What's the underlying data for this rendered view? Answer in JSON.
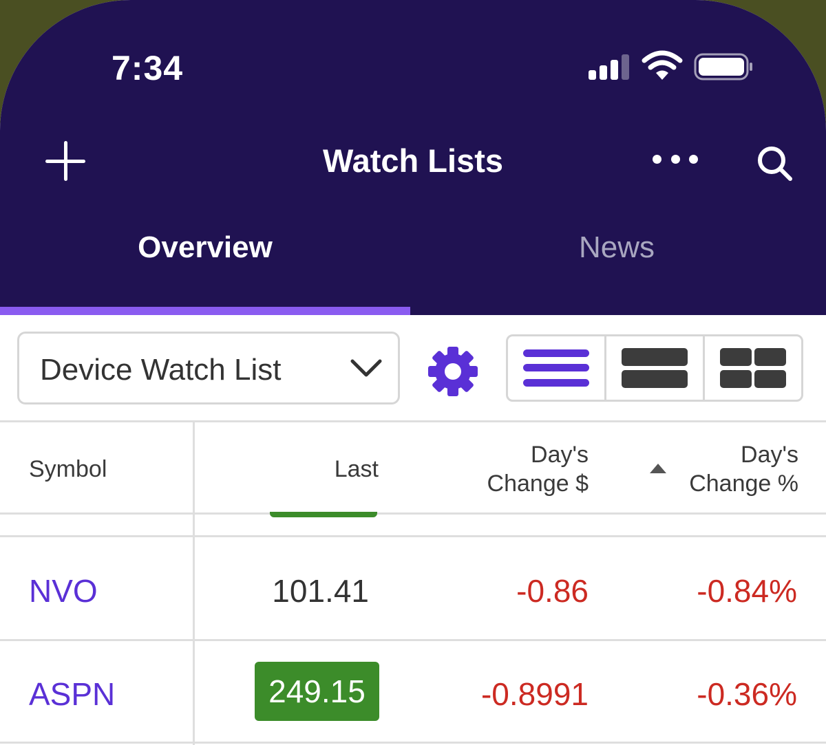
{
  "status_bar": {
    "time": "7:34"
  },
  "nav": {
    "title": "Watch Lists"
  },
  "tabs": [
    {
      "label": "Overview",
      "active": true
    },
    {
      "label": "News",
      "active": false
    }
  ],
  "toolbar": {
    "watchlist_selected": "Device Watch List",
    "view_modes": [
      "list-view-icon",
      "row-view-icon",
      "grid-view-icon"
    ],
    "active_view": "list-view-icon"
  },
  "table": {
    "headers": {
      "symbol": "Symbol",
      "last": "Last",
      "change_line1": "Day's",
      "change_line2": "Change $",
      "pct_line1": "Day's",
      "pct_line2": "Change %"
    },
    "sort_column": "pct",
    "rows": [
      {
        "symbol": "NVO",
        "last": "101.41",
        "change": "-0.86",
        "pct": "-0.84%",
        "highlight": false
      },
      {
        "symbol": "ASPN",
        "last": "249.15",
        "change": "-0.8991",
        "pct": "-0.36%",
        "highlight": true
      }
    ]
  },
  "colors": {
    "header_bg": "#201252",
    "accent": "#5a30d6",
    "tab_indicator": "#8a5bf0",
    "negative": "#cc2a22",
    "uptick_highlight": "#3c8c2a"
  }
}
